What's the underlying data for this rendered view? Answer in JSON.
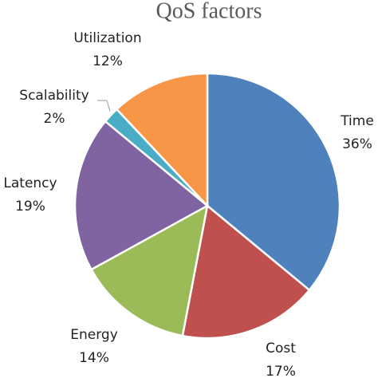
{
  "chart_data": {
    "type": "pie",
    "title": "QoS factors",
    "categories": [
      "Time",
      "Cost",
      "Energy",
      "Latency",
      "Scalability",
      "Utilization"
    ],
    "values": [
      36,
      17,
      14,
      19,
      2,
      12
    ],
    "value_labels": [
      "36%",
      "17%",
      "14%",
      "19%",
      "2%",
      "12%"
    ],
    "colors": [
      "#4f81bd",
      "#c0504d",
      "#9bbb59",
      "#8064a2",
      "#4bacc6",
      "#f79646"
    ]
  }
}
